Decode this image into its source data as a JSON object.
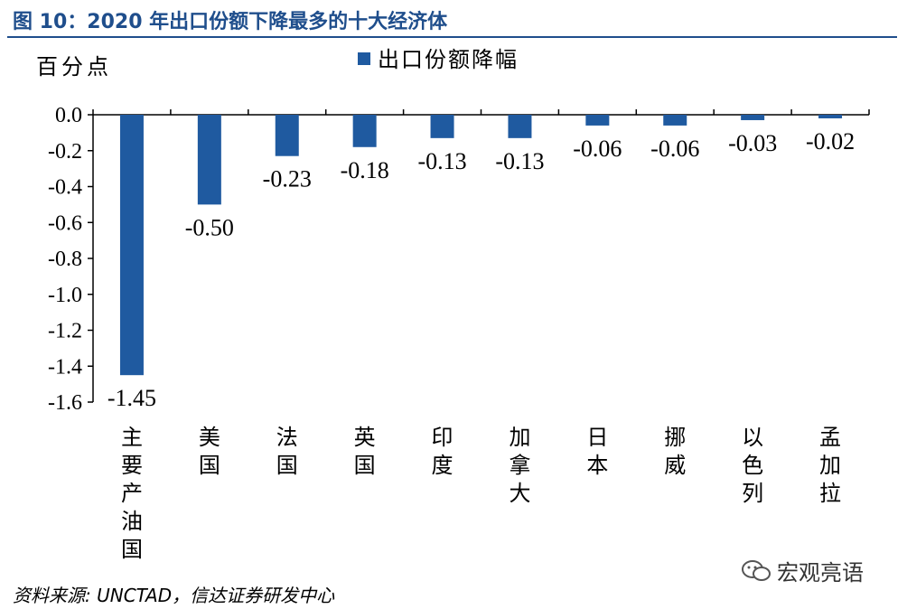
{
  "figure_title": "图 10：2020 年出口份额下降最多的十大经济体",
  "source_note": "资料来源: UNCTAD，信达证券研发中心",
  "watermark": "宏观亮语",
  "chart_data": {
    "type": "bar",
    "title": "",
    "ylabel": "百分点",
    "xlabel": "",
    "legend": "出口份额降幅",
    "legend_position": "top-center",
    "grid": false,
    "ylim": [
      -1.6,
      0.0
    ],
    "yticks": [
      "0.0",
      "-0.2",
      "-0.4",
      "-0.6",
      "-0.8",
      "-1.0",
      "-1.2",
      "-1.4",
      "-1.6"
    ],
    "categories": [
      "主要产油国",
      "美国",
      "法国",
      "英国",
      "印度",
      "加拿大",
      "日本",
      "挪威",
      "以色列",
      "孟加拉"
    ],
    "values": [
      -1.45,
      -0.5,
      -0.23,
      -0.18,
      -0.13,
      -0.13,
      -0.06,
      -0.06,
      -0.03,
      -0.02
    ],
    "data_labels": [
      "-1.45",
      "-0.50",
      "-0.23",
      "-0.18",
      "-0.13",
      "-0.13",
      "-0.06",
      "-0.06",
      "-0.03",
      "-0.02"
    ],
    "bar_color": "#1f5aa0"
  }
}
